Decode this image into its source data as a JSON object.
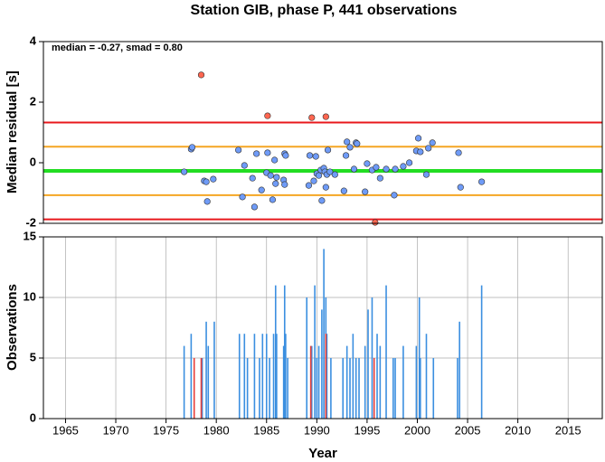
{
  "chart_data": [
    {
      "type": "scatter",
      "title": "Station GIB, phase P, 441 observations",
      "ylabel": "Median residual [s]",
      "annotation": "median = -0.27, smad = 0.80",
      "xlim": [
        1962.8,
        2018.4
      ],
      "ylim": [
        -2,
        4
      ],
      "yticks": [
        -2,
        0,
        2,
        4
      ],
      "grid": false,
      "hlines": [
        {
          "value": 1.33,
          "color": "#e8181c"
        },
        {
          "value": 0.53,
          "color": "#f5a623"
        },
        {
          "value": -0.27,
          "color": "#22dd22"
        },
        {
          "value": -1.07,
          "color": "#f5a623"
        },
        {
          "value": -1.87,
          "color": "#e8181c"
        }
      ],
      "series": [
        {
          "color": "#6f9bf7",
          "x": [
            1976.8,
            1977.5,
            1977.6,
            1978.8,
            1979.0,
            1979.1,
            1979.7,
            1982.2,
            1982.6,
            1982.8,
            1983.6,
            1983.8,
            1984.0,
            1984.5,
            1985.0,
            1985.1,
            1985.4,
            1985.6,
            1985.8,
            1985.9,
            1986.0,
            1986.7,
            1986.8,
            1986.9,
            1986.8,
            1989.2,
            1989.3,
            1989.7,
            1989.9,
            1990.0,
            1990.2,
            1990.4,
            1990.5,
            1990.7,
            1990.8,
            1990.9,
            1991.0,
            1991.1,
            1991.3,
            1991.8,
            1992.7,
            1992.9,
            1993.0,
            1993.3,
            1993.7,
            1993.9,
            1994.0,
            1994.8,
            1995.0,
            1995.5,
            1995.9,
            1996.3,
            1996.9,
            1997.7,
            1997.8,
            1998.6,
            1999.2,
            1999.9,
            2000.1,
            2000.3,
            2000.9,
            2001.1,
            2001.5,
            2004.1,
            2004.3,
            2006.4
          ],
          "values": [
            -0.3,
            0.45,
            0.51,
            -0.6,
            -0.63,
            -1.28,
            -0.54,
            0.42,
            -1.13,
            -0.09,
            -0.51,
            -1.46,
            0.3,
            -0.9,
            -0.33,
            0.33,
            -0.42,
            -1.22,
            0.09,
            -0.69,
            -0.48,
            -0.57,
            0.3,
            0.24,
            -0.72,
            -0.75,
            0.24,
            -0.6,
            0.21,
            -0.36,
            -0.42,
            -0.24,
            -1.25,
            -0.18,
            -0.3,
            -0.81,
            -0.39,
            0.42,
            -0.3,
            -0.39,
            -0.93,
            0.24,
            0.69,
            0.51,
            -0.21,
            0.66,
            0.63,
            -0.96,
            -0.03,
            -0.24,
            -0.15,
            -0.51,
            -0.21,
            -1.07,
            -0.21,
            -0.12,
            0.0,
            0.39,
            0.81,
            0.36,
            -0.39,
            0.48,
            0.66,
            0.33,
            -0.81,
            -0.63
          ]
        },
        {
          "color": "#ff6650",
          "x": [
            1978.5,
            1985.1,
            1989.5,
            1990.9,
            1995.8
          ],
          "values": [
            2.9,
            1.55,
            1.49,
            1.52,
            -1.97
          ]
        }
      ]
    },
    {
      "type": "bar",
      "xlabel": "Year",
      "ylabel": "Observations",
      "xlim": [
        1962.8,
        2018.4
      ],
      "xticks": [
        1965,
        1970,
        1975,
        1980,
        1985,
        1990,
        1995,
        2000,
        2005,
        2010,
        2015
      ],
      "ylim": [
        0,
        15
      ],
      "yticks": [
        0,
        5,
        10,
        15
      ],
      "grid": true,
      "series": [
        {
          "color": "#3b8fe0",
          "x": [
            1976.8,
            1977.5,
            1978.6,
            1979.0,
            1979.2,
            1979.8,
            1982.3,
            1982.8,
            1983.1,
            1983.8,
            1984.3,
            1984.6,
            1985.0,
            1985.3,
            1985.7,
            1985.9,
            1986.0,
            1986.7,
            1986.8,
            1986.9,
            1987.1,
            1989.0,
            1989.5,
            1989.8,
            1990.0,
            1990.2,
            1990.5,
            1990.7,
            1990.9,
            1991.0,
            1991.4,
            1992.6,
            1993.0,
            1993.3,
            1993.6,
            1993.9,
            1994.2,
            1994.8,
            1995.1,
            1995.5,
            1996.0,
            1996.3,
            1996.9,
            1997.6,
            1997.8,
            1998.6,
            1999.9,
            2000.2,
            2000.3,
            2000.9,
            2001.6,
            2004.0,
            2004.2,
            2006.4
          ],
          "values": [
            6,
            7,
            5,
            8,
            6,
            8,
            7,
            7,
            5,
            7,
            5,
            7,
            7,
            5,
            7,
            11,
            7,
            6,
            11,
            7,
            5,
            10,
            6,
            11,
            5,
            6,
            9,
            14,
            10,
            7,
            5,
            5,
            6,
            5,
            7,
            5,
            5,
            6,
            9,
            10,
            7,
            6,
            11,
            5,
            5,
            6,
            6,
            10,
            5,
            7,
            5,
            5,
            8,
            11
          ]
        },
        {
          "color": "#e8403a",
          "x": [
            1977.8,
            1978.5,
            1989.4,
            1990.9,
            1995.7
          ],
          "values": [
            5,
            5,
            6,
            7,
            5
          ]
        }
      ]
    }
  ]
}
